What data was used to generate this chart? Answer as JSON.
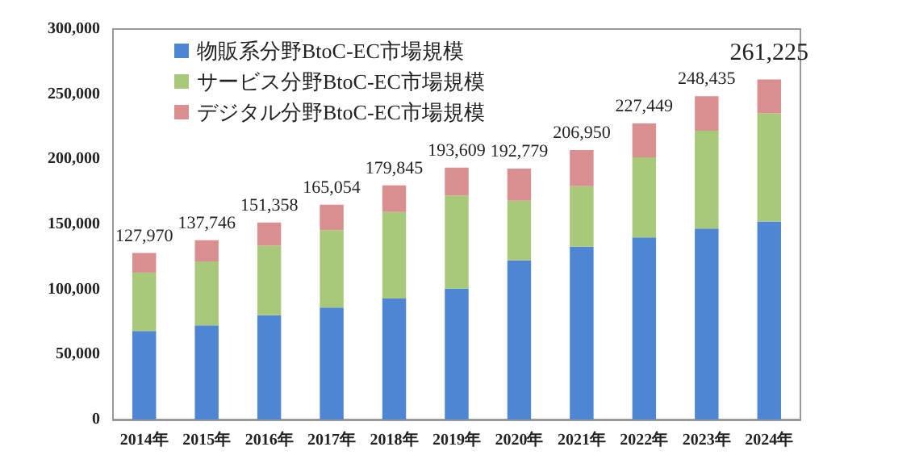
{
  "chart_data": {
    "type": "bar",
    "stacked": true,
    "categories": [
      "2014年",
      "2015年",
      "2016年",
      "2017年",
      "2018年",
      "2019年",
      "2020年",
      "2021年",
      "2022年",
      "2023年",
      "2024年"
    ],
    "series": [
      {
        "name": "物販系分野BtoC-EC市場規模",
        "color": "#4f86d4",
        "values": [
          68043,
          72398,
          80043,
          86008,
          92992,
          100515,
          122333,
          132865,
          139997,
          146760,
          152194
        ]
      },
      {
        "name": "サービス分野BtoC-EC市場規模",
        "color": "#a9c97a",
        "values": [
          44816,
          49014,
          53532,
          59568,
          66471,
          71672,
          45832,
          46424,
          61477,
          75169,
          83000
        ]
      },
      {
        "name": "デジタル分野BtoC-EC市場規模",
        "color": "#d98f8f",
        "values": [
          15111,
          16334,
          17783,
          19478,
          20382,
          21422,
          24614,
          27661,
          25975,
          26506,
          26031
        ]
      }
    ],
    "totals": [
      "127,970",
      "137,746",
      "151,358",
      "165,054",
      "179,845",
      "193,609",
      "192,779",
      "206,950",
      "227,449",
      "248,435",
      "261,225"
    ],
    "ylim": [
      0,
      300000
    ],
    "yticks": [
      0,
      {
        "value": 50000,
        "label": "50,000"
      },
      {
        "value": 100000,
        "label": "100,000"
      },
      {
        "value": 150000,
        "label": "150,000"
      },
      {
        "value": 200000,
        "label": "200,000"
      },
      {
        "value": 250000,
        "label": "250,000"
      },
      {
        "value": 300000,
        "label": "300,000"
      }
    ],
    "grid": false,
    "legend": "top left"
  }
}
